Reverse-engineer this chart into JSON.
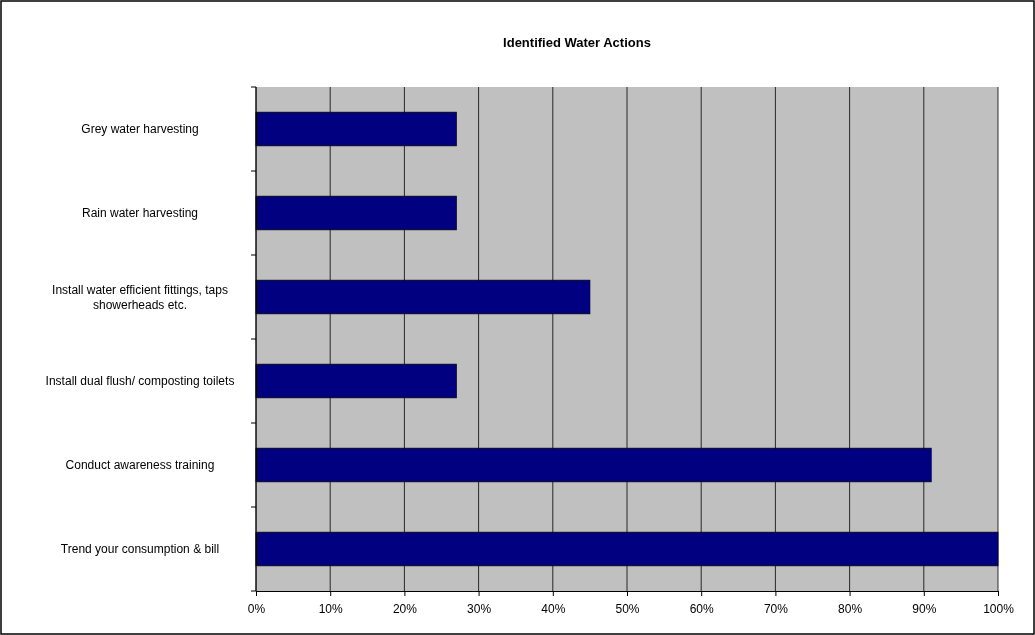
{
  "chart_data": {
    "type": "bar",
    "orientation": "horizontal",
    "title": "Identified Water Actions",
    "categories": [
      "Grey water harvesting",
      "Rain water harvesting",
      "Install water efficient fittings, taps showerheads etc.",
      "Install dual flush/ composting toilets",
      "Conduct awareness training",
      "Trend your consumption & bill"
    ],
    "values": [
      27,
      27,
      45,
      27,
      91,
      100
    ],
    "color": "#000080",
    "xlim": [
      0,
      100
    ],
    "xticks": [
      {
        "value": 0,
        "label": "0%"
      },
      {
        "value": 10,
        "label": "10%"
      },
      {
        "value": 20,
        "label": "20%"
      },
      {
        "value": 30,
        "label": "30%"
      },
      {
        "value": 40,
        "label": "40%"
      },
      {
        "value": 50,
        "label": "50%"
      },
      {
        "value": 60,
        "label": "60%"
      },
      {
        "value": 70,
        "label": "70%"
      },
      {
        "value": 80,
        "label": "80%"
      },
      {
        "value": 90,
        "label": "90%"
      },
      {
        "value": 100,
        "label": "100%"
      }
    ],
    "grid": "x"
  }
}
